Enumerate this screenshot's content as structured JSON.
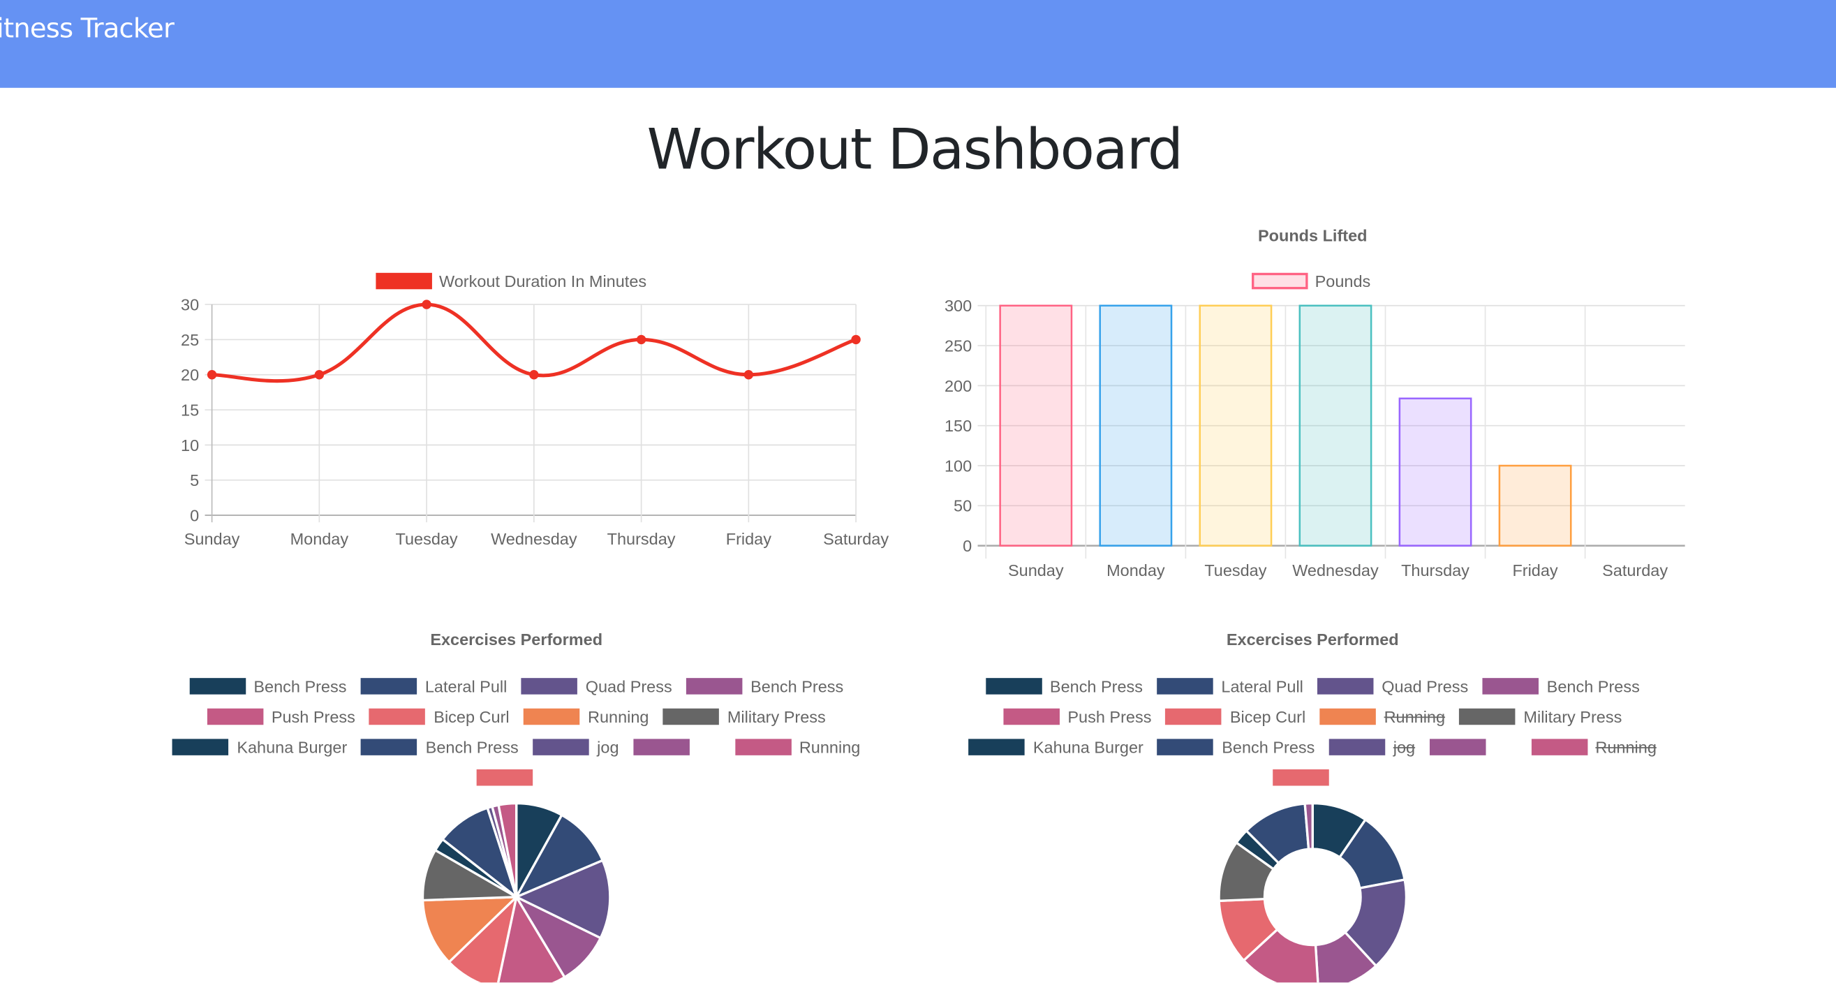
{
  "navbar": {
    "brand": "Fitness Tracker",
    "color": "#6592f3"
  },
  "page_title": "Workout Dashboard",
  "chart_data": [
    {
      "type": "line",
      "title": "",
      "legend": {
        "label": "Workout Duration In Minutes",
        "position": "top",
        "color": "#ee3124"
      },
      "categories": [
        "Sunday",
        "Monday",
        "Tuesday",
        "Wednesday",
        "Thursday",
        "Friday",
        "Saturday"
      ],
      "values": [
        20,
        20,
        30,
        20,
        25,
        20,
        25
      ],
      "ylim": [
        0,
        30
      ],
      "yticks": [
        0,
        5,
        10,
        15,
        20,
        25,
        30
      ],
      "grid": true,
      "smooth": true
    },
    {
      "type": "bar",
      "title": "Pounds Lifted",
      "legend": {
        "label": "Pounds",
        "position": "top"
      },
      "categories": [
        "Sunday",
        "Monday",
        "Tuesday",
        "Wednesday",
        "Thursday",
        "Friday",
        "Saturday"
      ],
      "values": [
        300,
        300,
        300,
        300,
        184,
        100,
        0
      ],
      "ylim": [
        0,
        300
      ],
      "yticks": [
        0,
        50,
        100,
        150,
        200,
        250,
        300
      ],
      "grid": true,
      "border_colors": [
        "#ff6384",
        "#36a2eb",
        "#ffce56",
        "#4bc0c0",
        "#9966ff",
        "#ff9f40",
        "#c9cbcf"
      ],
      "fill_colors": [
        "rgba(255,99,132,0.2)",
        "rgba(54,162,235,0.2)",
        "rgba(255,206,86,0.2)",
        "rgba(75,192,192,0.2)",
        "rgba(153,102,255,0.2)",
        "rgba(255,159,64,0.2)",
        "rgba(201,203,207,0.2)"
      ]
    },
    {
      "type": "pie",
      "title": "Excercises Performed",
      "legend_position": "top",
      "labels": [
        "Bench Press",
        "Lateral Pull",
        "Quad Press",
        "Bench Press",
        "Push Press",
        "Bicep Curl",
        "Running",
        "Military Press",
        "Kahuna Burger",
        "Bench Press",
        "jog",
        "",
        "Running",
        ""
      ],
      "values": [
        29,
        38,
        49,
        33,
        43,
        34,
        42,
        32,
        8,
        34,
        3,
        4,
        11,
        0
      ],
      "hidden": [
        false,
        false,
        false,
        false,
        false,
        false,
        false,
        false,
        false,
        false,
        false,
        false,
        false,
        false
      ],
      "colors": [
        "#183f5a",
        "#334b77",
        "#63548c",
        "#9a5690",
        "#c45a85",
        "#e6696f",
        "#ef8451",
        "#666666",
        "#183f5a",
        "#334b77",
        "#63548c",
        "#9a5690",
        "#c45a85",
        "#e6696f"
      ]
    },
    {
      "type": "doughnut",
      "title": "Excercises Performed",
      "legend_position": "top",
      "labels": [
        "Bench Press",
        "Lateral Pull",
        "Quad Press",
        "Bench Press",
        "Push Press",
        "Bicep Curl",
        "Running",
        "Military Press",
        "Kahuna Burger",
        "Bench Press",
        "jog",
        "",
        "Running",
        ""
      ],
      "values": [
        29,
        38,
        49,
        33,
        43,
        34,
        42,
        32,
        8,
        34,
        3,
        4,
        11,
        0
      ],
      "hidden": [
        false,
        false,
        false,
        false,
        false,
        false,
        true,
        false,
        false,
        false,
        true,
        false,
        true,
        false
      ],
      "colors": [
        "#183f5a",
        "#334b77",
        "#63548c",
        "#9a5690",
        "#c45a85",
        "#e6696f",
        "#ef8451",
        "#666666",
        "#183f5a",
        "#334b77",
        "#63548c",
        "#9a5690",
        "#c45a85",
        "#e6696f"
      ]
    }
  ]
}
